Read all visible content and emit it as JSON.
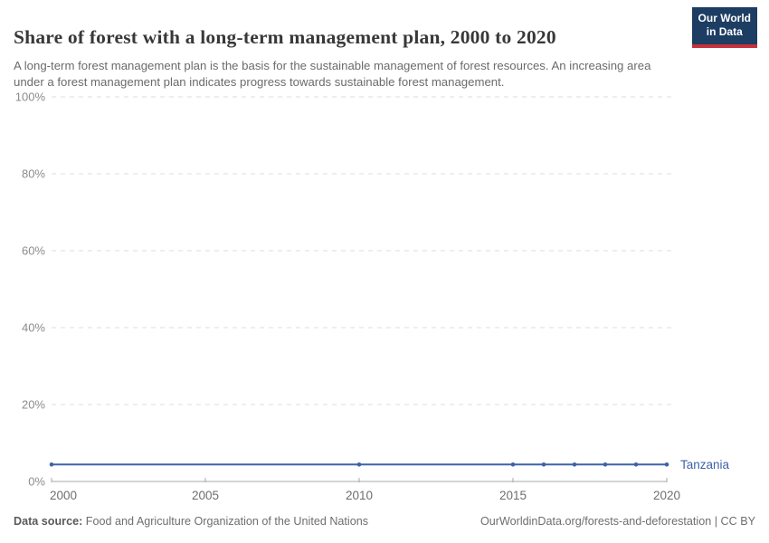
{
  "header": {
    "title": "Share of forest with a long-term management plan, 2000 to 2020",
    "subtitle": "A long-term forest management plan is the basis for the sustainable management of forest resources. An increasing area under a forest management plan indicates progress towards sustainable forest management."
  },
  "logo": {
    "line1": "Our World",
    "line2": "in Data",
    "bg_color": "#1d3d63",
    "accent_color": "#c5313d"
  },
  "footer": {
    "datasource_label": "Data source:",
    "datasource_value": " Food and Agriculture Organization of the United Nations",
    "link": "OurWorldinData.org/forests-and-deforestation | CC BY"
  },
  "chart_data": {
    "type": "line",
    "title": "Share of forest with a long-term management plan, 2000 to 2020",
    "xlabel": "",
    "ylabel": "",
    "xlim": [
      2000,
      2020
    ],
    "ylim": [
      0,
      100
    ],
    "xticks": [
      2000,
      2005,
      2010,
      2015,
      2020
    ],
    "yticks": [
      0,
      20,
      40,
      60,
      80,
      100
    ],
    "ytick_suffix": "%",
    "grid": "horizontal-dashed",
    "legend_position": "end-of-line-label",
    "colors": {
      "gridline": "#dcdcdc",
      "axis": "#a8a8a8",
      "y_tick_label": "#8c8c8c",
      "x_tick_label": "#6e6e6e"
    },
    "series": [
      {
        "name": "Tanzania",
        "color": "#3d62a9",
        "x": [
          2000,
          2010,
          2015,
          2016,
          2017,
          2018,
          2019,
          2020
        ],
        "y": [
          4.4,
          4.4,
          4.4,
          4.4,
          4.4,
          4.4,
          4.4,
          4.4
        ]
      }
    ]
  }
}
